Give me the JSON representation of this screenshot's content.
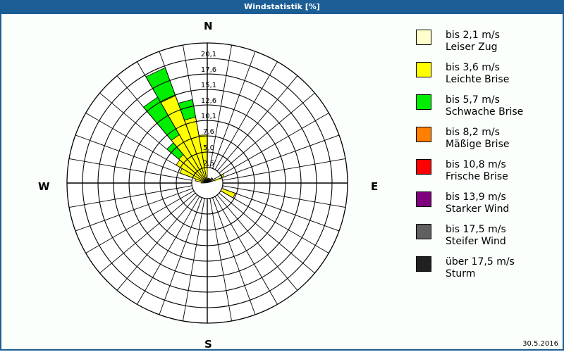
{
  "window": {
    "title": "Windstatistik [%]",
    "date": "30.5.2016",
    "frame_color": "#1b5e96"
  },
  "compass": {
    "n": "N",
    "e": "E",
    "s": "S",
    "w": "W"
  },
  "legend": {
    "items": [
      {
        "range": "bis 2,1 m/s",
        "name": "Leiser Zug",
        "color": "#ffffcc"
      },
      {
        "range": "bis 3,6 m/s",
        "name": "Leichte Brise",
        "color": "#ffff00"
      },
      {
        "range": "bis 5,7 m/s",
        "name": "Schwache Brise",
        "color": "#00ee00"
      },
      {
        "range": "bis 8,2 m/s",
        "name": "Mäßige Brise",
        "color": "#ff8000"
      },
      {
        "range": "bis 10,8 m/s",
        "name": "Frische Brise",
        "color": "#ff0000"
      },
      {
        "range": "bis 13,9 m/s",
        "name": "Starker Wind",
        "color": "#800080"
      },
      {
        "range": "bis 17,5 m/s",
        "name": "Steifer Wind",
        "color": "#606060"
      },
      {
        "range": "über 17,5 m/s",
        "name": "Sturm",
        "color": "#202020"
      }
    ]
  },
  "chart_data": {
    "type": "polar-bar (wind rose, stacked)",
    "title": "Windstatistik [%]",
    "unit": "%",
    "sector_width_deg": 10,
    "rings": [
      "2,5",
      "5,0",
      "7,6",
      "10,1",
      "12,6",
      "15,1",
      "17,6",
      "20,1"
    ],
    "ring_values": [
      2.5,
      5.0,
      7.6,
      10.1,
      12.6,
      15.1,
      17.6,
      20.1
    ],
    "rmax": 20.1,
    "directions_labels": [
      "N",
      "E",
      "S",
      "W"
    ],
    "series_names": [
      "bis 2,1 m/s",
      "bis 3,6 m/s",
      "bis 5,7 m/s"
    ],
    "sectors": [
      {
        "dir": 0,
        "values": [
          0.3,
          0.4,
          0
        ]
      },
      {
        "dir": 10,
        "values": [
          0.4,
          0.4,
          0
        ]
      },
      {
        "dir": 20,
        "values": [
          0.5,
          0.3,
          0
        ]
      },
      {
        "dir": 30,
        "values": [
          0.5,
          0.3,
          0
        ]
      },
      {
        "dir": 40,
        "values": [
          0.8,
          0.3,
          0
        ]
      },
      {
        "dir": 50,
        "values": [
          0.8,
          0.3,
          0
        ]
      },
      {
        "dir": 60,
        "values": [
          2.6,
          0.3,
          0
        ]
      },
      {
        "dir": 70,
        "values": [
          1.3,
          1.0,
          0
        ]
      },
      {
        "dir": 80,
        "values": [
          0.6,
          0.4,
          0
        ]
      },
      {
        "dir": 90,
        "values": [
          0.3,
          0.3,
          0
        ]
      },
      {
        "dir": 100,
        "values": [
          0.3,
          2.4,
          0
        ]
      },
      {
        "dir": 110,
        "values": [
          0.3,
          4.5,
          0
        ]
      },
      {
        "dir": 120,
        "values": [
          0.2,
          0.8,
          0
        ]
      },
      {
        "dir": 130,
        "values": [
          0.2,
          0.2,
          0
        ]
      },
      {
        "dir": 140,
        "values": [
          0.1,
          0.1,
          0
        ]
      },
      {
        "dir": 150,
        "values": [
          0.1,
          0.1,
          0
        ]
      },
      {
        "dir": 160,
        "values": [
          0.1,
          0.1,
          0
        ]
      },
      {
        "dir": 170,
        "values": [
          0.1,
          0.1,
          0
        ]
      },
      {
        "dir": 180,
        "values": [
          0.1,
          0.1,
          0
        ]
      },
      {
        "dir": 190,
        "values": [
          0.1,
          0.1,
          0
        ]
      },
      {
        "dir": 200,
        "values": [
          0.1,
          0.1,
          0
        ]
      },
      {
        "dir": 210,
        "values": [
          0.1,
          0.1,
          0
        ]
      },
      {
        "dir": 220,
        "values": [
          0.1,
          0.1,
          0
        ]
      },
      {
        "dir": 230,
        "values": [
          0.1,
          0.1,
          0
        ]
      },
      {
        "dir": 240,
        "values": [
          0.1,
          0.2,
          0
        ]
      },
      {
        "dir": 250,
        "values": [
          0.1,
          0.3,
          0
        ]
      },
      {
        "dir": 260,
        "values": [
          0.1,
          0.4,
          0
        ]
      },
      {
        "dir": 270,
        "values": [
          0.2,
          0.8,
          0
        ]
      },
      {
        "dir": 280,
        "values": [
          0.2,
          1.8,
          0
        ]
      },
      {
        "dir": 290,
        "values": [
          0.2,
          4.5,
          0
        ]
      },
      {
        "dir": 300,
        "values": [
          0.3,
          5.5,
          0
        ]
      },
      {
        "dir": 310,
        "values": [
          0.3,
          5.7,
          2.5
        ]
      },
      {
        "dir": 320,
        "values": [
          0.3,
          8.7,
          7.0
        ]
      },
      {
        "dir": 330,
        "values": [
          0.3,
          14.7,
          4.8
        ]
      },
      {
        "dir": 340,
        "values": [
          0.3,
          10.5,
          2.9
        ]
      },
      {
        "dir": 350,
        "values": [
          0.4,
          7.4,
          0
        ]
      }
    ],
    "legend_position": "right"
  }
}
